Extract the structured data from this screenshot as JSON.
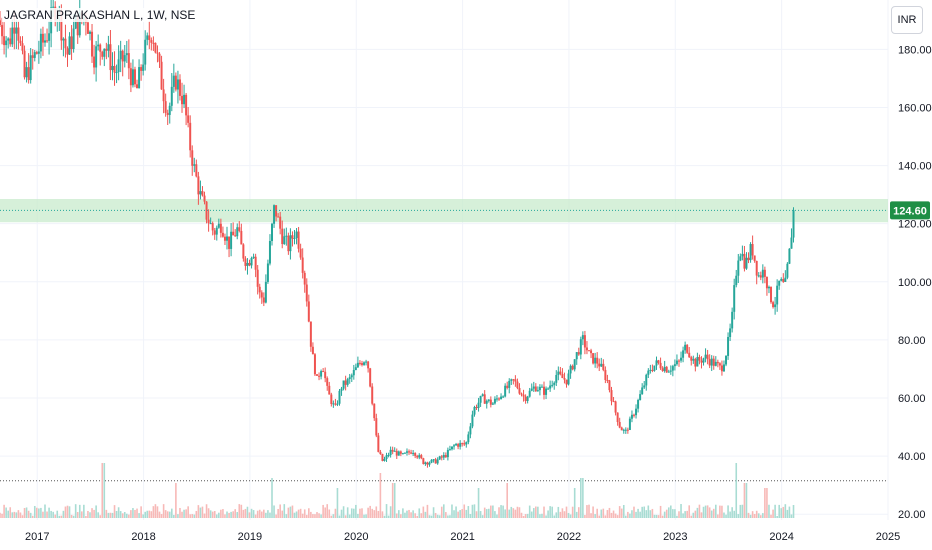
{
  "header": {
    "title": "JAGRAN PRAKASHAN L, 1W, NSE",
    "currency": "INR"
  },
  "colors": {
    "up": "#26a69a",
    "down": "#ef5350",
    "grid": "#f0f3fa",
    "zone": "#c8ebcc",
    "badge": "#1e8f45",
    "price_line": "#26a69a",
    "volume_up": "#a8dcd3",
    "volume_down": "#f7b9b7"
  },
  "chart_data": {
    "type": "candlestick",
    "title": "JAGRAN PRAKASHAN L, 1W, NSE",
    "x_ticks": [
      "2017",
      "2018",
      "2019",
      "2020",
      "2021",
      "2022",
      "2023",
      "2024",
      "2025"
    ],
    "y_ticks": [
      "20.00",
      "40.00",
      "60.00",
      "80.00",
      "100.00",
      "120.00",
      "140.00",
      "160.00",
      "180.00"
    ],
    "ylim": [
      18,
      197
    ],
    "xlim": [
      2016.65,
      2025.0
    ],
    "last_price": "124.60",
    "last_price_value": 124.6,
    "resistance_zone": [
      120.5,
      128.5
    ],
    "dotted_level": 31.5,
    "grid": true,
    "price_path": [
      [
        2016.65,
        190
      ],
      [
        2016.75,
        182
      ],
      [
        2016.82,
        192
      ],
      [
        2016.9,
        170
      ],
      [
        2017.0,
        178
      ],
      [
        2017.1,
        184
      ],
      [
        2017.2,
        196
      ],
      [
        2017.3,
        178
      ],
      [
        2017.38,
        188
      ],
      [
        2017.48,
        192
      ],
      [
        2017.55,
        178
      ],
      [
        2017.65,
        182
      ],
      [
        2017.75,
        172
      ],
      [
        2017.85,
        178
      ],
      [
        2017.95,
        165
      ],
      [
        2018.02,
        178
      ],
      [
        2018.1,
        187
      ],
      [
        2018.18,
        170
      ],
      [
        2018.25,
        158
      ],
      [
        2018.32,
        170
      ],
      [
        2018.4,
        162
      ],
      [
        2018.45,
        148
      ],
      [
        2018.5,
        138
      ],
      [
        2018.55,
        130
      ],
      [
        2018.62,
        122
      ],
      [
        2018.68,
        117
      ],
      [
        2018.75,
        120
      ],
      [
        2018.82,
        113
      ],
      [
        2018.9,
        118
      ],
      [
        2018.95,
        110
      ],
      [
        2019.0,
        106
      ],
      [
        2019.05,
        112
      ],
      [
        2019.1,
        96
      ],
      [
        2019.15,
        94
      ],
      [
        2019.2,
        110
      ],
      [
        2019.25,
        126
      ],
      [
        2019.32,
        116
      ],
      [
        2019.38,
        112
      ],
      [
        2019.45,
        118
      ],
      [
        2019.5,
        110
      ],
      [
        2019.55,
        96
      ],
      [
        2019.6,
        76
      ],
      [
        2019.65,
        66
      ],
      [
        2019.7,
        72
      ],
      [
        2019.75,
        62
      ],
      [
        2019.82,
        56
      ],
      [
        2019.88,
        64
      ],
      [
        2019.95,
        66
      ],
      [
        2020.05,
        72
      ],
      [
        2020.12,
        74
      ],
      [
        2020.18,
        56
      ],
      [
        2020.22,
        42
      ],
      [
        2020.27,
        38
      ],
      [
        2020.35,
        42
      ],
      [
        2020.45,
        40
      ],
      [
        2020.55,
        42
      ],
      [
        2020.65,
        38
      ],
      [
        2020.75,
        38
      ],
      [
        2020.85,
        40
      ],
      [
        2020.95,
        44
      ],
      [
        2021.05,
        44
      ],
      [
        2021.12,
        56
      ],
      [
        2021.2,
        60
      ],
      [
        2021.3,
        58
      ],
      [
        2021.4,
        62
      ],
      [
        2021.5,
        66
      ],
      [
        2021.6,
        60
      ],
      [
        2021.7,
        64
      ],
      [
        2021.8,
        62
      ],
      [
        2021.9,
        68
      ],
      [
        2022.0,
        66
      ],
      [
        2022.08,
        74
      ],
      [
        2022.15,
        80
      ],
      [
        2022.22,
        74
      ],
      [
        2022.3,
        72
      ],
      [
        2022.38,
        66
      ],
      [
        2022.45,
        56
      ],
      [
        2022.5,
        50
      ],
      [
        2022.55,
        48
      ],
      [
        2022.62,
        54
      ],
      [
        2022.7,
        62
      ],
      [
        2022.78,
        70
      ],
      [
        2022.85,
        72
      ],
      [
        2022.95,
        70
      ],
      [
        2023.05,
        72
      ],
      [
        2023.12,
        78
      ],
      [
        2023.2,
        72
      ],
      [
        2023.3,
        74
      ],
      [
        2023.38,
        72
      ],
      [
        2023.45,
        70
      ],
      [
        2023.5,
        76
      ],
      [
        2023.55,
        86
      ],
      [
        2023.58,
        100
      ],
      [
        2023.62,
        112
      ],
      [
        2023.68,
        106
      ],
      [
        2023.74,
        112
      ],
      [
        2023.8,
        102
      ],
      [
        2023.86,
        104
      ],
      [
        2023.9,
        96
      ],
      [
        2023.95,
        92
      ],
      [
        2024.0,
        100
      ],
      [
        2024.05,
        98
      ],
      [
        2024.1,
        112
      ],
      [
        2024.13,
        124.6
      ]
    ],
    "volume_spikes": [
      [
        2017.62,
        0.55
      ],
      [
        2018.3,
        0.35
      ],
      [
        2019.2,
        0.4
      ],
      [
        2019.82,
        0.3
      ],
      [
        2020.22,
        0.45
      ],
      [
        2020.35,
        0.35
      ],
      [
        2021.15,
        0.3
      ],
      [
        2021.42,
        0.35
      ],
      [
        2022.05,
        0.3
      ],
      [
        2022.12,
        0.4
      ],
      [
        2023.58,
        0.55
      ],
      [
        2023.66,
        0.35
      ],
      [
        2023.85,
        0.3
      ],
      [
        2024.13,
        0.9
      ]
    ]
  }
}
